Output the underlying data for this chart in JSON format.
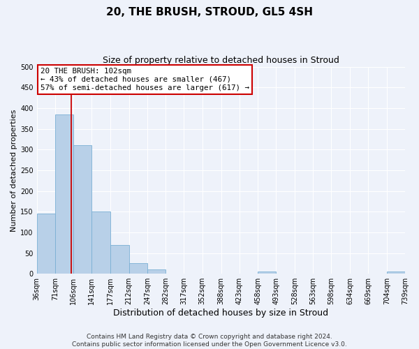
{
  "title": "20, THE BRUSH, STROUD, GL5 4SH",
  "subtitle": "Size of property relative to detached houses in Stroud",
  "xlabel": "Distribution of detached houses by size in Stroud",
  "ylabel": "Number of detached properties",
  "bin_edges": [
    36,
    71,
    106,
    141,
    177,
    212,
    247,
    282,
    317,
    352,
    388,
    423,
    458,
    493,
    528,
    563,
    598,
    634,
    669,
    704,
    739
  ],
  "bin_labels": [
    "36sqm",
    "71sqm",
    "106sqm",
    "141sqm",
    "177sqm",
    "212sqm",
    "247sqm",
    "282sqm",
    "317sqm",
    "352sqm",
    "388sqm",
    "423sqm",
    "458sqm",
    "493sqm",
    "528sqm",
    "563sqm",
    "598sqm",
    "634sqm",
    "669sqm",
    "704sqm",
    "739sqm"
  ],
  "counts": [
    145,
    385,
    310,
    150,
    70,
    25,
    10,
    0,
    0,
    0,
    0,
    0,
    5,
    0,
    0,
    0,
    0,
    0,
    0,
    5
  ],
  "bar_color": "#b8d0e8",
  "bar_edge_color": "#7aafd4",
  "vline_x": 102,
  "vline_color": "#cc0000",
  "ylim": [
    0,
    500
  ],
  "yticks": [
    0,
    50,
    100,
    150,
    200,
    250,
    300,
    350,
    400,
    450,
    500
  ],
  "annotation_box_text": "20 THE BRUSH: 102sqm\n← 43% of detached houses are smaller (467)\n57% of semi-detached houses are larger (617) →",
  "annotation_box_color": "#cc0000",
  "background_color": "#eef2fa",
  "grid_color": "#ffffff",
  "footnote": "Contains HM Land Registry data © Crown copyright and database right 2024.\nContains public sector information licensed under the Open Government Licence v3.0.",
  "title_fontsize": 11,
  "subtitle_fontsize": 9,
  "xlabel_fontsize": 9,
  "ylabel_fontsize": 8,
  "annotation_fontsize": 7.8,
  "footnote_fontsize": 6.5,
  "tick_fontsize": 7
}
